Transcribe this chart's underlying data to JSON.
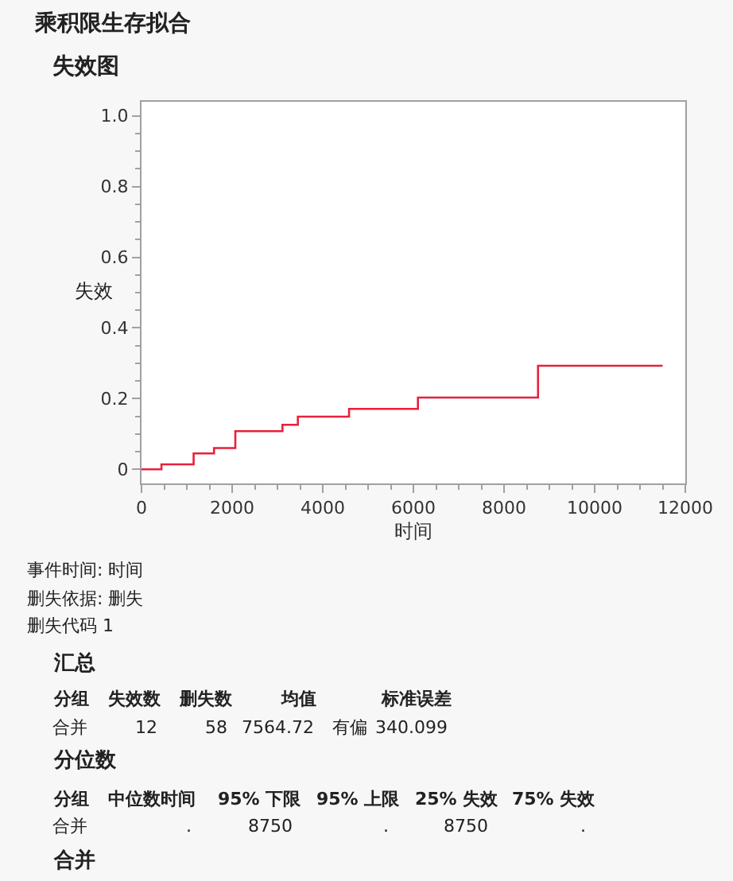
{
  "chart_data": {
    "type": "step",
    "title": "乘积限生存拟合",
    "subtitle": "失效图",
    "xlabel": "时间",
    "ylabel": "失效",
    "x": [
      0,
      440,
      1150,
      1600,
      2070,
      3110,
      3450,
      4580,
      6100,
      8750,
      11500
    ],
    "series": [
      {
        "color": "#e8203c",
        "values": [
          0,
          0.014,
          0.045,
          0.06,
          0.108,
          0.126,
          0.149,
          0.171,
          0.203,
          0.293,
          0.293
        ]
      }
    ],
    "xlim": [
      0,
      12000
    ],
    "xticks": [
      0,
      2000,
      4000,
      6000,
      8000,
      10000,
      12000
    ],
    "ylim": [
      -0.04,
      1.04
    ],
    "yticks": [
      0,
      0.2,
      0.4,
      0.6,
      0.8,
      {
        "value": 1,
        "label": "1.0"
      }
    ],
    "line_style": "solid",
    "annotations": [
      "事件时间: 时间",
      "删失依据: 删失",
      "删失代码 1",
      "汇总",
      "分组",
      "失效数",
      "删失数",
      "均值",
      "标准误差",
      "合并",
      "12",
      "58",
      "7564.72",
      "有偏",
      "340.099",
      "分位数",
      "分组",
      "中位数时间",
      "95% 下限",
      "95% 上限",
      "25% 失效",
      "75% 失效",
      "合并",
      ".",
      "8750",
      ".",
      "8750",
      ".",
      "合并"
    ]
  }
}
